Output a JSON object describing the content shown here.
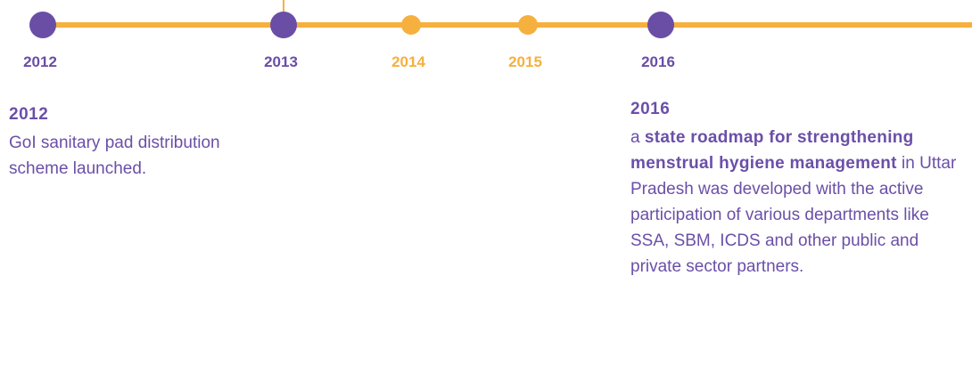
{
  "timeline": [
    {
      "year": "2012",
      "color": "#6a4ea6"
    },
    {
      "year": "2013",
      "color": "#6a4ea6"
    },
    {
      "year": "2014",
      "color": "#f6b03e"
    },
    {
      "year": "2015",
      "color": "#f6b03e"
    },
    {
      "year": "2016",
      "color": "#6a4ea6"
    }
  ],
  "events": [
    {
      "title": "2012",
      "parts": [
        {
          "text": "GoI sanitary pad distribution scheme launched.",
          "bold": false
        }
      ]
    },
    {
      "title": "2016",
      "parts": [
        {
          "text": "a ",
          "bold": false
        },
        {
          "text": "state roadmap for strengthening menstrual hygiene management",
          "bold": true
        },
        {
          "text": " in Uttar Pradesh was developed with the active participation of various departments like SSA, SBM, ICDS and other public and private sector partners.",
          "bold": false
        }
      ]
    }
  ]
}
